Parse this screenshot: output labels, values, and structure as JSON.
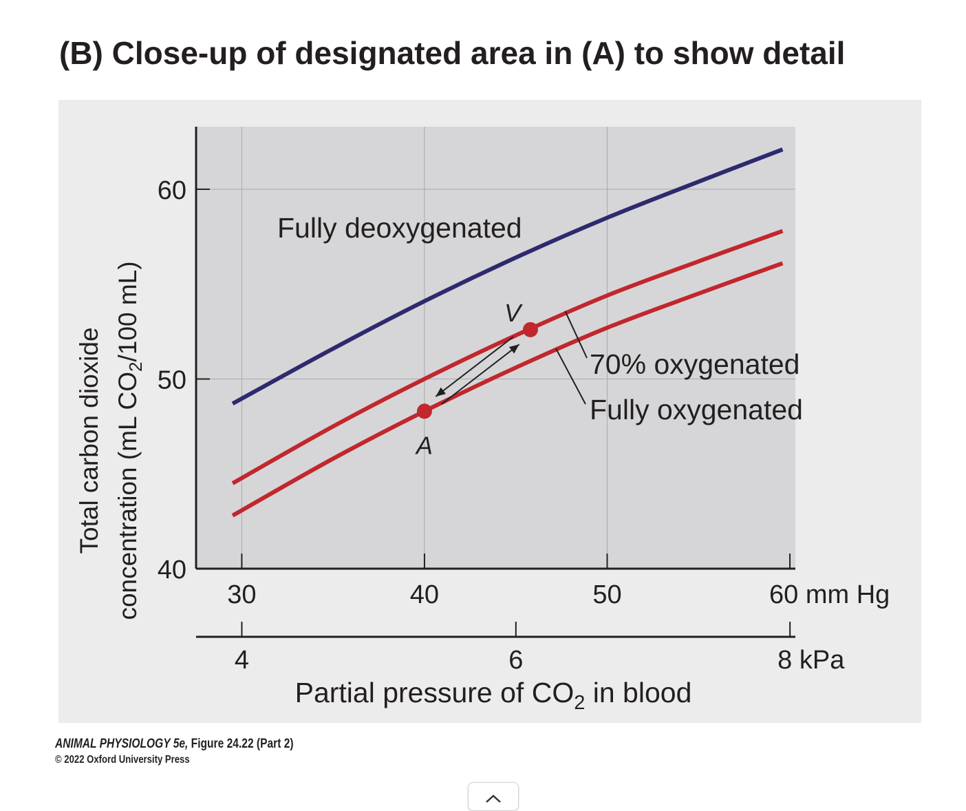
{
  "figure": {
    "title": "(B)  Close-up of designated area in (A) to show detail",
    "credit_book": "ANIMAL PHYSIOLOGY 5e,",
    "credit_figure": " Figure 24.22 (Part 2)",
    "credit_copyright": "© 2022 Oxford University Press"
  },
  "scroll_top_button": {
    "icon": "chevron-up-icon"
  },
  "chart_data": {
    "type": "line",
    "title": "",
    "ylabel_line1": "Total carbon dioxide",
    "ylabel_line2_prefix": "concentration (mL CO",
    "ylabel_line2_sub": "2",
    "ylabel_line2_suffix": "/100 mL)",
    "xlabel_prefix": "Partial pressure of CO",
    "xlabel_sub": "2",
    "xlabel_suffix": " in blood",
    "xlim": [
      27.5,
      60.3
    ],
    "ylim": [
      40,
      63.3
    ],
    "x_ticks": [
      30,
      40,
      50,
      60
    ],
    "x_tick_labels": [
      "30",
      "40",
      "50",
      "60 mm Hg"
    ],
    "x2_ticks_kpa": [
      4,
      6,
      8
    ],
    "x2_tick_labels": [
      "4",
      "6",
      "8 kPa"
    ],
    "y_ticks": [
      40,
      50,
      60
    ],
    "y_tick_labels": [
      "40",
      "50",
      "60"
    ],
    "grid": true,
    "series": [
      {
        "name": "Fully deoxygenated",
        "color": "#2e2a6e",
        "x": [
          29.5,
          35,
          40,
          45,
          50,
          55,
          59.6
        ],
        "y": [
          48.7,
          51.6,
          54.1,
          56.4,
          58.5,
          60.4,
          62.1
        ]
      },
      {
        "name": "70% oxygenated",
        "color": "#c1272d",
        "x": [
          29.5,
          35,
          40,
          45,
          50,
          55,
          59.6
        ],
        "y": [
          44.5,
          47.5,
          50.0,
          52.3,
          54.4,
          56.2,
          57.8
        ]
      },
      {
        "name": "Fully oxygenated",
        "color": "#c1272d",
        "x": [
          29.5,
          35,
          40,
          45,
          50,
          55,
          59.6
        ],
        "y": [
          42.8,
          45.8,
          48.3,
          50.6,
          52.7,
          54.5,
          56.1
        ]
      }
    ],
    "points": [
      {
        "label": "A",
        "x": 40,
        "y": 48.3,
        "color": "#c1272d"
      },
      {
        "label": "V",
        "x": 45.8,
        "y": 52.6,
        "color": "#c1272d"
      }
    ]
  }
}
